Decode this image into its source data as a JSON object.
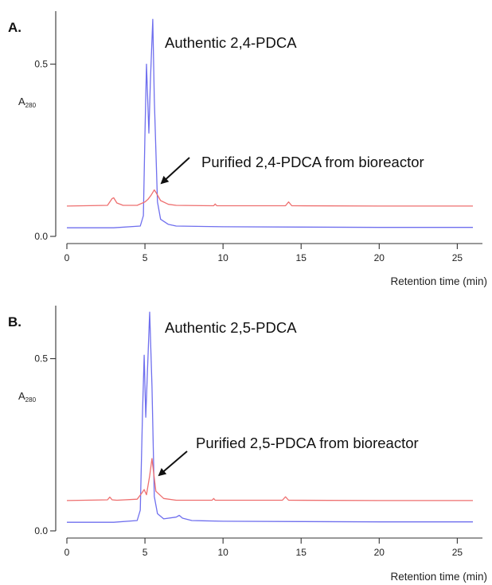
{
  "chart_data": [
    {
      "type": "line",
      "panel_label": "A.",
      "xlabel": "Retention time (min)",
      "ylabel": "A",
      "ylabel_sub": "280",
      "xlim": [
        0,
        26
      ],
      "ylim": [
        0,
        0.64
      ],
      "xticks": [
        0,
        5,
        10,
        15,
        20,
        25
      ],
      "yticks": [
        0.0,
        0.5
      ],
      "ytick_labels": [
        "0.0",
        "0.5"
      ],
      "series": [
        {
          "name": "Authentic 2,4-PDCA",
          "color": "#6f6fee",
          "x": [
            0,
            3,
            4.7,
            4.9,
            5.0,
            5.1,
            5.25,
            5.35,
            5.5,
            5.6,
            5.8,
            6.0,
            6.5,
            7,
            10,
            15,
            20,
            26
          ],
          "y": [
            0.025,
            0.025,
            0.03,
            0.06,
            0.3,
            0.5,
            0.3,
            0.45,
            0.63,
            0.4,
            0.1,
            0.05,
            0.035,
            0.03,
            0.028,
            0.027,
            0.026,
            0.026
          ]
        },
        {
          "name": "Purified 2,4-PDCA from bioreactor",
          "color": "#ee6f6f",
          "x": [
            0,
            2.6,
            2.9,
            3.0,
            3.2,
            3.6,
            4.5,
            5.0,
            5.2,
            5.4,
            5.6,
            5.7,
            6.0,
            6.5,
            7,
            9.4,
            9.5,
            9.6,
            14.0,
            14.2,
            14.4,
            20,
            26
          ],
          "y": [
            0.088,
            0.09,
            0.11,
            0.112,
            0.097,
            0.09,
            0.09,
            0.1,
            0.108,
            0.12,
            0.135,
            0.128,
            0.104,
            0.093,
            0.09,
            0.089,
            0.094,
            0.089,
            0.089,
            0.1,
            0.089,
            0.088,
            0.088
          ]
        }
      ],
      "annotations": [
        {
          "text": "Authentic 2,4-PDCA"
        },
        {
          "text": "Purified 2,4-PDCA from bioreactor"
        }
      ]
    },
    {
      "type": "line",
      "panel_label": "B.",
      "xlabel": "Retention time (min)",
      "ylabel": "A",
      "ylabel_sub": "280",
      "xlim": [
        0,
        26
      ],
      "ylim": [
        0,
        0.64
      ],
      "xticks": [
        0,
        5,
        10,
        15,
        20,
        25
      ],
      "yticks": [
        0.0,
        0.5
      ],
      "ytick_labels": [
        "0.0",
        "0.5"
      ],
      "series": [
        {
          "name": "Authentic 2,5-PDCA",
          "color": "#6f6fee",
          "x": [
            0,
            3,
            4.5,
            4.7,
            4.85,
            4.95,
            5.05,
            5.15,
            5.3,
            5.45,
            5.6,
            5.8,
            6.2,
            7.0,
            7.2,
            7.4,
            8,
            10,
            15,
            20,
            26
          ],
          "y": [
            0.025,
            0.025,
            0.03,
            0.06,
            0.35,
            0.51,
            0.33,
            0.45,
            0.635,
            0.42,
            0.1,
            0.05,
            0.035,
            0.04,
            0.045,
            0.037,
            0.03,
            0.028,
            0.027,
            0.026,
            0.026
          ]
        },
        {
          "name": "Purified 2,5-PDCA from bioreactor",
          "color": "#ee6f6f",
          "x": [
            0,
            2.6,
            2.75,
            2.9,
            3.2,
            4.5,
            4.8,
            4.95,
            5.1,
            5.3,
            5.45,
            5.55,
            5.7,
            6.2,
            7,
            9.3,
            9.4,
            9.5,
            13.8,
            14.0,
            14.2,
            20,
            26
          ],
          "y": [
            0.088,
            0.09,
            0.098,
            0.09,
            0.089,
            0.092,
            0.11,
            0.12,
            0.105,
            0.16,
            0.21,
            0.17,
            0.115,
            0.094,
            0.089,
            0.089,
            0.094,
            0.089,
            0.089,
            0.099,
            0.089,
            0.088,
            0.088
          ]
        }
      ],
      "annotations": [
        {
          "text": "Authentic 2,5-PDCA"
        },
        {
          "text": "Purified 2,5-PDCA from bioreactor"
        }
      ]
    }
  ]
}
